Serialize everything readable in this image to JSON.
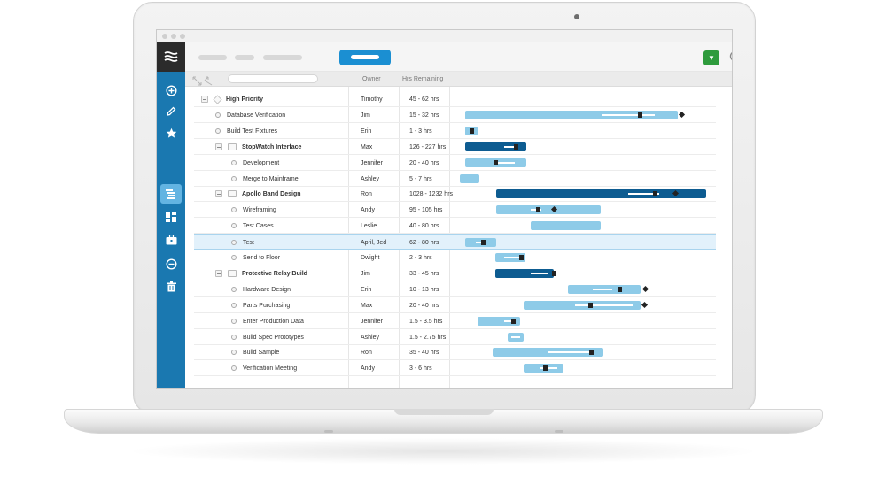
{
  "columns": {
    "owner": "Owner",
    "hours": "Hrs Remaining"
  },
  "colors": {
    "sidebar": "#1a78b0",
    "bar_light": "#8ecbe8",
    "bar_dark": "#0d5c91",
    "primary": "#1b8fd2",
    "confirm": "#2e9b3c"
  },
  "sidebar": {
    "logo": "waves-logo-icon",
    "items": [
      {
        "icon": "add-circle-icon"
      },
      {
        "icon": "pencil-icon"
      },
      {
        "icon": "star-icon"
      },
      {
        "icon": "gantt-list-icon",
        "active": true
      },
      {
        "icon": "dashboard-icon"
      },
      {
        "icon": "briefcase-icon"
      },
      {
        "icon": "minus-circle-icon"
      },
      {
        "icon": "trash-icon"
      }
    ]
  },
  "rows": [
    {
      "name": "High Priority",
      "owner": "Timothy",
      "hours": "45 - 62 hrs",
      "kind": "project",
      "level": 0
    },
    {
      "name": "Database Verification",
      "owner": "Jim",
      "hours": "15 - 32 hrs",
      "kind": "task",
      "level": 1
    },
    {
      "name": "Build Test Fixtures",
      "owner": "Erin",
      "hours": "1 - 3 hrs",
      "kind": "task",
      "level": 1
    },
    {
      "name": "StopWatch Interface",
      "owner": "Max",
      "hours": "126 - 227 hrs",
      "kind": "group",
      "level": 1
    },
    {
      "name": "Development",
      "owner": "Jennifer",
      "hours": "20 - 40 hrs",
      "kind": "task",
      "level": 2
    },
    {
      "name": "Merge to Mainframe",
      "owner": "Ashley",
      "hours": "5 - 7 hrs",
      "kind": "task",
      "level": 2
    },
    {
      "name": "Apollo Band Design",
      "owner": "Ron",
      "hours": "1028 - 1232 hrs",
      "kind": "group",
      "level": 1
    },
    {
      "name": "Wireframing",
      "owner": "Andy",
      "hours": "95 - 105 hrs",
      "kind": "task",
      "level": 2
    },
    {
      "name": "Test Cases",
      "owner": "Leslie",
      "hours": "40 - 80 hrs",
      "kind": "task",
      "level": 2
    },
    {
      "name": "Test",
      "owner": "April, Jed",
      "hours": "62 - 80 hrs",
      "kind": "task",
      "level": 2,
      "selected": true
    },
    {
      "name": "Send to Floor",
      "owner": "Dwight",
      "hours": "2 - 3 hrs",
      "kind": "task",
      "level": 2
    },
    {
      "name": "Protective Relay Build",
      "owner": "Jim",
      "hours": "33 - 45 hrs",
      "kind": "group",
      "level": 1
    },
    {
      "name": "Hardware Design",
      "owner": "Erin",
      "hours": "10 - 13 hrs",
      "kind": "task",
      "level": 2
    },
    {
      "name": "Parts Purchasing",
      "owner": "Max",
      "hours": "20 - 40 hrs",
      "kind": "task",
      "level": 2
    },
    {
      "name": "Enter Production Data",
      "owner": "Jennifer",
      "hours": "1.5 - 3.5 hrs",
      "kind": "task",
      "level": 2
    },
    {
      "name": "Build Spec Prototypes",
      "owner": "Ashley",
      "hours": "1.5 - 2.75 hrs",
      "kind": "task",
      "level": 2
    },
    {
      "name": "Build Sample",
      "owner": "Ron",
      "hours": "35 - 40 hrs",
      "kind": "task",
      "level": 2
    },
    {
      "name": "Verification Meeting",
      "owner": "Andy",
      "hours": "3 - 6 hrs",
      "kind": "task",
      "level": 2
    }
  ]
}
